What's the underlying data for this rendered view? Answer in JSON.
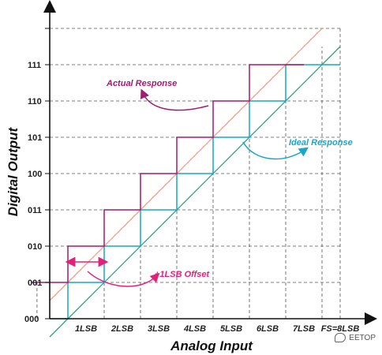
{
  "diagram": {
    "x_axis_title": "Analog Input",
    "y_axis_title": "Digital Output",
    "x_ticks": [
      "1LSB",
      "2LSB",
      "3LSB",
      "4LSB",
      "5LSB",
      "6LSB",
      "7LSB",
      "FS=8LSB"
    ],
    "y_ticks": [
      "000",
      "001",
      "010",
      "011",
      "100",
      "101",
      "110",
      "111"
    ],
    "annotations": {
      "actual": "Actual Response",
      "ideal": "Ideal Response",
      "offset": "+1LSB Offset"
    },
    "colors": {
      "actual": "#9b1f6e",
      "ideal": "#1aa6c4",
      "offset": "#e0227d",
      "actual_line": "#f0a080",
      "ideal_line": "#2aa37a"
    }
  },
  "watermark": {
    "text": "EETOP"
  }
}
